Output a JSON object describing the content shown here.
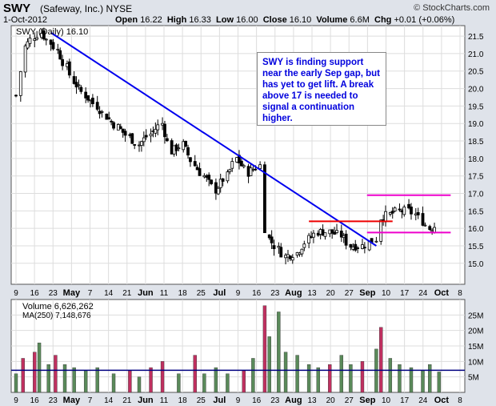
{
  "header": {
    "symbol": "SWY",
    "company": "(Safeway, Inc.)",
    "exchange": "NYSE",
    "date": "1-Oct-2012",
    "brand": "© StockCharts.com",
    "open_label": "Open",
    "open": "16.22",
    "high_label": "High",
    "high": "16.33",
    "low_label": "Low",
    "low": "16.00",
    "close_label": "Close",
    "close": "16.10",
    "volume_label": "Volume",
    "volume": "6.6M",
    "chg_label": "Chg",
    "chg": "+0.01 (+0.06%)"
  },
  "price_legend": "SWY (Daily) 16.10",
  "volume_legend": "Volume 6,626,262",
  "ma_legend": "MA(250) 7,148,676",
  "annotation": "SWY is finding support near the early Sep gap, but has yet to get lift. A break above 17 is needed to signal a continuation higher.",
  "colors": {
    "candle": "#000000",
    "trendline": "#0000ee",
    "red_line": "#ee0000",
    "magenta_line": "#ee00cc",
    "vol_up": "#5a8a5a",
    "vol_down": "#c03060",
    "ma_line": "#000080",
    "background": "#ffffff",
    "frame": "#dfe3ea",
    "grid": "#dddddd"
  },
  "chart_data": [
    {
      "type": "candlestick",
      "title": "SWY (Daily) 16.10",
      "ylim": [
        14.4,
        21.8
      ],
      "y_ticks": [
        15.0,
        15.5,
        16.0,
        16.5,
        17.0,
        17.5,
        18.0,
        18.5,
        19.0,
        19.5,
        20.0,
        20.5,
        21.0,
        21.5
      ],
      "x_ticks": [
        "9",
        "16",
        "23",
        "May",
        "7",
        "14",
        "21",
        "Jun",
        "11",
        "18",
        "25",
        "Jul",
        "9",
        "16",
        "23",
        "Aug",
        "13",
        "20",
        "27",
        "Sep",
        "10",
        "17",
        "24",
        "Oct",
        "8"
      ],
      "x_range": [
        "2012-04-02",
        "2012-10-10"
      ],
      "close_series": [
        [
          "2012-04-02",
          19.8
        ],
        [
          "2012-04-04",
          20.5
        ],
        [
          "2012-04-06",
          21.2
        ],
        [
          "2012-04-10",
          21.5
        ],
        [
          "2012-04-13",
          21.6
        ],
        [
          "2012-04-17",
          21.3
        ],
        [
          "2012-04-20",
          21.1
        ],
        [
          "2012-04-24",
          20.6
        ],
        [
          "2012-04-27",
          20.2
        ],
        [
          "2012-05-02",
          19.8
        ],
        [
          "2012-05-07",
          19.5
        ],
        [
          "2012-05-11",
          19.2
        ],
        [
          "2012-05-16",
          18.9
        ],
        [
          "2012-05-21",
          18.6
        ],
        [
          "2012-05-25",
          18.4
        ],
        [
          "2012-05-30",
          18.7
        ],
        [
          "2012-06-04",
          19.0
        ],
        [
          "2012-06-08",
          18.2
        ],
        [
          "2012-06-13",
          18.4
        ],
        [
          "2012-06-18",
          17.8
        ],
        [
          "2012-06-22",
          17.5
        ],
        [
          "2012-06-27",
          17.1
        ],
        [
          "2012-07-02",
          17.5
        ],
        [
          "2012-07-06",
          18.0
        ],
        [
          "2012-07-11",
          17.6
        ],
        [
          "2012-07-16",
          17.8
        ],
        [
          "2012-07-18",
          16.0
        ],
        [
          "2012-07-20",
          15.7
        ],
        [
          "2012-07-24",
          15.4
        ],
        [
          "2012-07-27",
          15.2
        ],
        [
          "2012-08-01",
          15.3
        ],
        [
          "2012-08-06",
          15.7
        ],
        [
          "2012-08-10",
          15.9
        ],
        [
          "2012-08-15",
          15.9
        ],
        [
          "2012-08-20",
          15.8
        ],
        [
          "2012-08-24",
          15.5
        ],
        [
          "2012-08-29",
          15.5
        ],
        [
          "2012-09-04",
          15.7
        ],
        [
          "2012-09-06",
          16.3
        ],
        [
          "2012-09-10",
          16.4
        ],
        [
          "2012-09-14",
          16.5
        ],
        [
          "2012-09-18",
          16.5
        ],
        [
          "2012-09-21",
          16.4
        ],
        [
          "2012-09-24",
          16.2
        ],
        [
          "2012-09-27",
          16.0
        ],
        [
          "2012-10-01",
          16.1
        ]
      ],
      "trendline": [
        [
          "2012-04-17",
          21.6
        ],
        [
          "2012-09-04",
          15.5
        ]
      ],
      "red_line": {
        "y": 16.2,
        "x": [
          "2012-08-06",
          "2012-09-11"
        ]
      },
      "magenta_lines": [
        {
          "y": 16.95,
          "x": [
            "2012-08-31",
            "2012-10-06"
          ]
        },
        {
          "y": 15.88,
          "x": [
            "2012-08-31",
            "2012-10-06"
          ]
        }
      ]
    },
    {
      "type": "bar",
      "title": "Volume 6,626,262",
      "ylim": [
        0,
        30
      ],
      "y_ticks": [
        "5M",
        "10M",
        "15M",
        "20M",
        "25M"
      ],
      "unit": "millions of shares",
      "volume_series": [
        [
          "2012-04-02",
          6
        ],
        [
          "2012-04-05",
          11
        ],
        [
          "2012-04-10",
          13
        ],
        [
          "2012-04-12",
          16
        ],
        [
          "2012-04-16",
          9
        ],
        [
          "2012-04-19",
          12
        ],
        [
          "2012-04-23",
          9
        ],
        [
          "2012-04-27",
          8
        ],
        [
          "2012-05-02",
          7
        ],
        [
          "2012-05-07",
          8
        ],
        [
          "2012-05-14",
          6
        ],
        [
          "2012-05-21",
          7
        ],
        [
          "2012-05-25",
          5
        ],
        [
          "2012-05-30",
          8
        ],
        [
          "2012-06-04",
          10
        ],
        [
          "2012-06-11",
          6
        ],
        [
          "2012-06-18",
          12
        ],
        [
          "2012-06-22",
          6
        ],
        [
          "2012-06-27",
          8
        ],
        [
          "2012-07-02",
          6
        ],
        [
          "2012-07-09",
          7
        ],
        [
          "2012-07-13",
          11
        ],
        [
          "2012-07-18",
          28
        ],
        [
          "2012-07-20",
          18
        ],
        [
          "2012-07-24",
          26
        ],
        [
          "2012-07-27",
          13
        ],
        [
          "2012-08-01",
          12
        ],
        [
          "2012-08-06",
          9
        ],
        [
          "2012-08-10",
          8
        ],
        [
          "2012-08-15",
          9
        ],
        [
          "2012-08-20",
          12
        ],
        [
          "2012-08-24",
          9
        ],
        [
          "2012-08-29",
          10
        ],
        [
          "2012-09-04",
          14
        ],
        [
          "2012-09-06",
          21
        ],
        [
          "2012-09-10",
          11
        ],
        [
          "2012-09-14",
          9
        ],
        [
          "2012-09-19",
          8
        ],
        [
          "2012-09-24",
          7
        ],
        [
          "2012-09-27",
          9
        ],
        [
          "2012-10-01",
          6.6
        ]
      ],
      "ma250": 7.15
    }
  ]
}
